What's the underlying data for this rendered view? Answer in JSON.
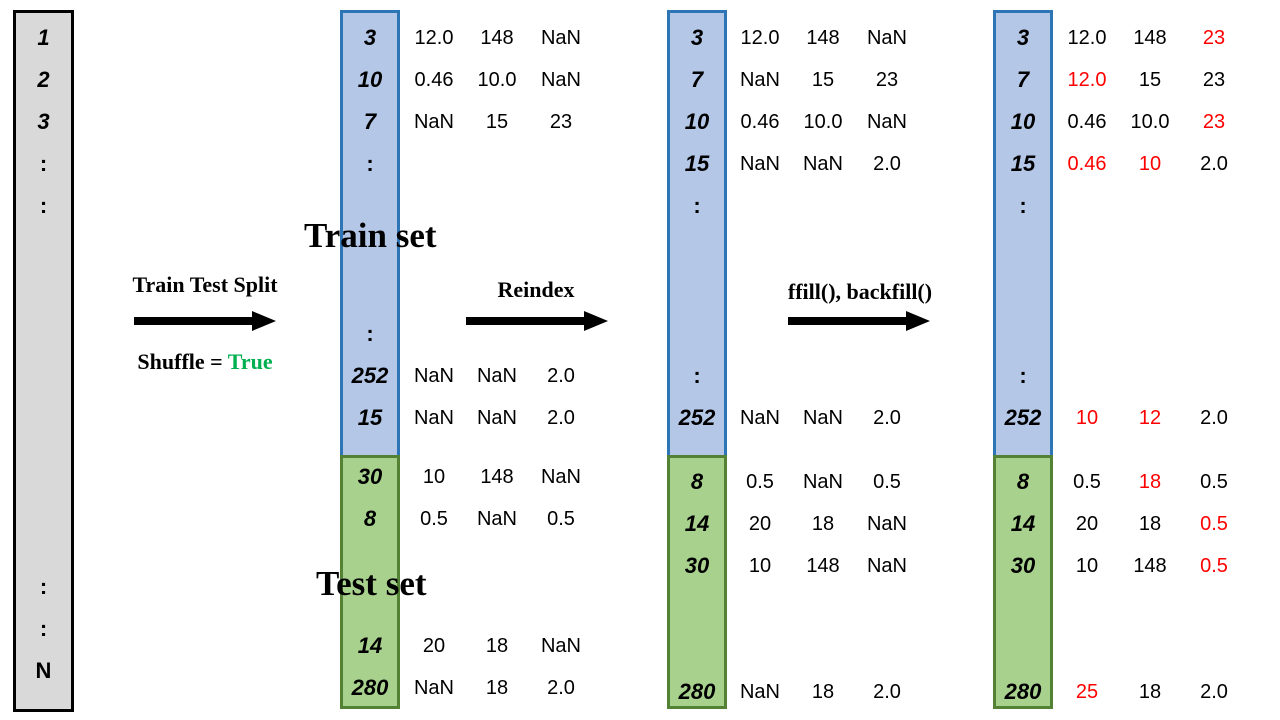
{
  "full_dataset": {
    "top_labels": [
      "1",
      "2",
      "3",
      ":",
      ":"
    ],
    "bottom_labels": [
      ":",
      ":",
      "N"
    ]
  },
  "steps": {
    "split": {
      "label": "Train Test Split",
      "shuffle_prefix": "Shuffle = ",
      "shuffle_value": "True",
      "shuffle_value_color": "#00b050"
    },
    "reindex": {
      "label": "Reindex"
    },
    "fill": {
      "label": "ffill(), backfill()"
    }
  },
  "set_labels": {
    "train": "Train set",
    "test": "Test set"
  },
  "colors": {
    "train_fill": "#b4c7e7",
    "train_border": "#2e75b6",
    "test_fill": "#a9d18e",
    "test_border": "#548235",
    "full_fill": "#d9d9d9",
    "filled_value": "#ff0000"
  },
  "panels": [
    {
      "train_rows": [
        {
          "index": "3",
          "values": [
            "12.0",
            "148",
            "NaN"
          ]
        },
        {
          "index": "10",
          "values": [
            "0.46",
            "10.0",
            "NaN"
          ]
        },
        {
          "index": "7",
          "values": [
            "NaN",
            "15",
            "23"
          ]
        },
        {
          "index": ":",
          "values": []
        },
        {
          "index": ":",
          "values": []
        },
        {
          "index": "252",
          "values": [
            "NaN",
            "NaN",
            "2.0"
          ]
        },
        {
          "index": "15",
          "values": [
            "NaN",
            "NaN",
            "2.0"
          ]
        }
      ],
      "test_rows": [
        {
          "index": "30",
          "values": [
            "10",
            "148",
            "NaN"
          ]
        },
        {
          "index": "8",
          "values": [
            "0.5",
            "NaN",
            "0.5"
          ]
        },
        {
          "index": "14",
          "values": [
            "20",
            "18",
            "NaN"
          ]
        },
        {
          "index": "280",
          "values": [
            "NaN",
            "18",
            "2.0"
          ]
        }
      ]
    },
    {
      "train_rows": [
        {
          "index": "3",
          "values": [
            "12.0",
            "148",
            "NaN"
          ]
        },
        {
          "index": "7",
          "values": [
            "NaN",
            "15",
            "23"
          ]
        },
        {
          "index": "10",
          "values": [
            "0.46",
            "10.0",
            "NaN"
          ]
        },
        {
          "index": "15",
          "values": [
            "NaN",
            "NaN",
            "2.0"
          ]
        },
        {
          "index": ":",
          "values": []
        },
        {
          "index": ":",
          "values": []
        },
        {
          "index": "252",
          "values": [
            "NaN",
            "NaN",
            "2.0"
          ]
        }
      ],
      "test_rows": [
        {
          "index": "8",
          "values": [
            "0.5",
            "NaN",
            "0.5"
          ]
        },
        {
          "index": "14",
          "values": [
            "20",
            "18",
            "NaN"
          ]
        },
        {
          "index": "30",
          "values": [
            "10",
            "148",
            "NaN"
          ]
        },
        {
          "index": "280",
          "values": [
            "NaN",
            "18",
            "2.0"
          ]
        }
      ]
    },
    {
      "train_rows": [
        {
          "index": "3",
          "values": [
            "12.0",
            "148",
            "23"
          ],
          "filled": [
            false,
            false,
            true
          ]
        },
        {
          "index": "7",
          "values": [
            "12.0",
            "15",
            "23"
          ],
          "filled": [
            true,
            false,
            false
          ]
        },
        {
          "index": "10",
          "values": [
            "0.46",
            "10.0",
            "23"
          ],
          "filled": [
            false,
            false,
            true
          ]
        },
        {
          "index": "15",
          "values": [
            "0.46",
            "10",
            "2.0"
          ],
          "filled": [
            true,
            true,
            false
          ]
        },
        {
          "index": ":",
          "values": []
        },
        {
          "index": ":",
          "values": []
        },
        {
          "index": "252",
          "values": [
            "10",
            "12",
            "2.0"
          ],
          "filled": [
            true,
            true,
            false
          ]
        }
      ],
      "test_rows": [
        {
          "index": "8",
          "values": [
            "0.5",
            "18",
            "0.5"
          ],
          "filled": [
            false,
            true,
            false
          ]
        },
        {
          "index": "14",
          "values": [
            "20",
            "18",
            "0.5"
          ],
          "filled": [
            false,
            false,
            true
          ]
        },
        {
          "index": "30",
          "values": [
            "10",
            "148",
            "0.5"
          ],
          "filled": [
            false,
            false,
            true
          ]
        },
        {
          "index": "280",
          "values": [
            "25",
            "18",
            "2.0"
          ],
          "filled": [
            true,
            false,
            false
          ]
        }
      ]
    }
  ]
}
